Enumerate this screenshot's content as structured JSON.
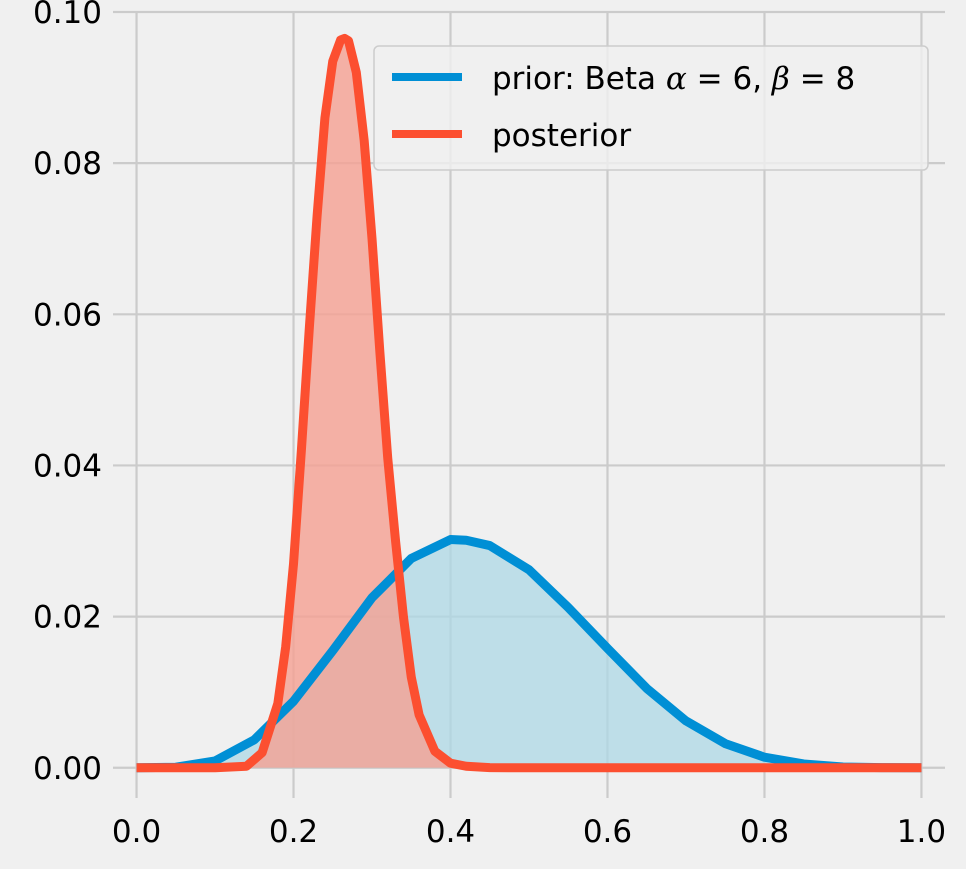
{
  "chart_data": {
    "type": "area",
    "xlim": [
      -0.03,
      1.03
    ],
    "ylim": [
      -0.004,
      0.1
    ],
    "x_ticks": [
      0.0,
      0.2,
      0.4,
      0.6,
      0.8,
      1.0
    ],
    "x_tick_labels": [
      "0.0",
      "0.2",
      "0.4",
      "0.6",
      "0.8",
      "1.0"
    ],
    "y_ticks": [
      0.0,
      0.02,
      0.04,
      0.06,
      0.08,
      0.1
    ],
    "y_tick_labels": [
      "0.00",
      "0.02",
      "0.04",
      "0.06",
      "0.08",
      "0.10"
    ],
    "grid": true,
    "legend_position": "top-right",
    "series": [
      {
        "name": "prior: Beta α = 6, β = 8",
        "color": "#008fd5",
        "fill_color": "#add8e6",
        "x": [
          0.0,
          0.05,
          0.1,
          0.15,
          0.2,
          0.25,
          0.3,
          0.35,
          0.4,
          0.42,
          0.45,
          0.5,
          0.55,
          0.6,
          0.65,
          0.7,
          0.75,
          0.8,
          0.85,
          0.9,
          0.95,
          1.0
        ],
        "y": [
          0.0,
          7e-05,
          0.0009,
          0.0037,
          0.0088,
          0.0155,
          0.0225,
          0.0277,
          0.0302,
          0.0301,
          0.0294,
          0.0262,
          0.0212,
          0.0158,
          0.0105,
          0.0062,
          0.0032,
          0.0014,
          0.0005,
          0.0001,
          2e-05,
          0.0
        ]
      },
      {
        "name": "posterior",
        "color": "#fc4f30",
        "fill_color": "#f5a092",
        "x": [
          0.0,
          0.1,
          0.14,
          0.16,
          0.18,
          0.19,
          0.2,
          0.21,
          0.22,
          0.23,
          0.24,
          0.25,
          0.26,
          0.265,
          0.27,
          0.28,
          0.29,
          0.3,
          0.31,
          0.32,
          0.33,
          0.34,
          0.35,
          0.36,
          0.38,
          0.4,
          0.42,
          0.45,
          0.5,
          0.6,
          1.0
        ],
        "y": [
          0.0,
          0.0,
          0.0002,
          0.002,
          0.0085,
          0.016,
          0.027,
          0.042,
          0.058,
          0.073,
          0.086,
          0.0935,
          0.0963,
          0.0965,
          0.0962,
          0.092,
          0.083,
          0.07,
          0.055,
          0.041,
          0.03,
          0.02,
          0.012,
          0.007,
          0.0022,
          0.0006,
          0.0002,
          2e-05,
          0.0,
          0.0,
          0.0
        ]
      }
    ]
  }
}
